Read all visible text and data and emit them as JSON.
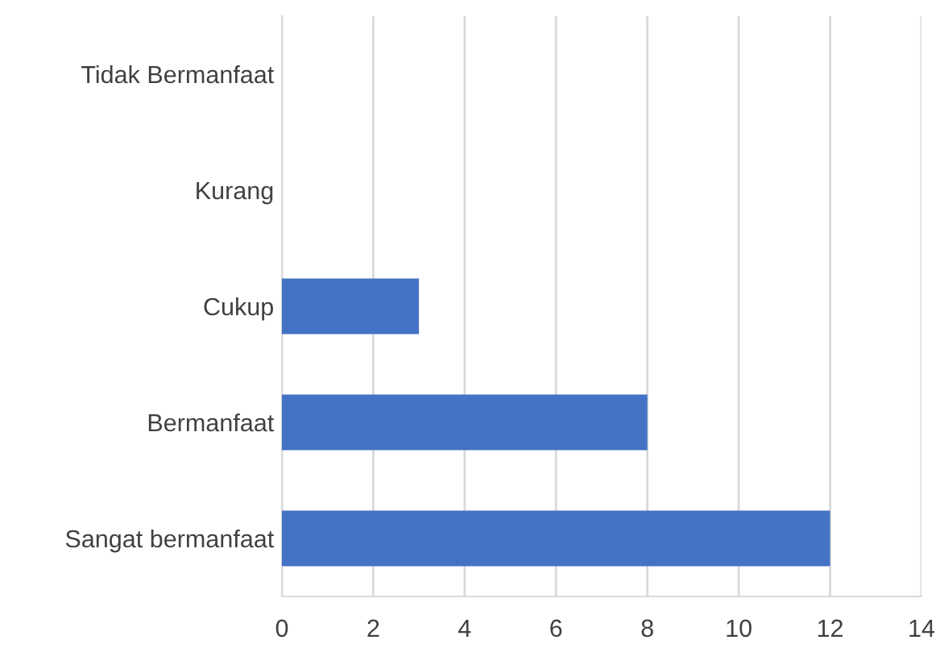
{
  "chart_data": {
    "type": "bar",
    "orientation": "horizontal",
    "categories": [
      "Tidak Bermanfaat",
      "Kurang",
      "Cukup",
      "Bermanfaat",
      "Sangat bermanfaat"
    ],
    "values": [
      0,
      0,
      3,
      8,
      12
    ],
    "color": "#4472c4",
    "xlim": [
      0,
      14
    ],
    "xticks": [
      0,
      2,
      4,
      6,
      8,
      10,
      12,
      14
    ],
    "grid": "x"
  }
}
